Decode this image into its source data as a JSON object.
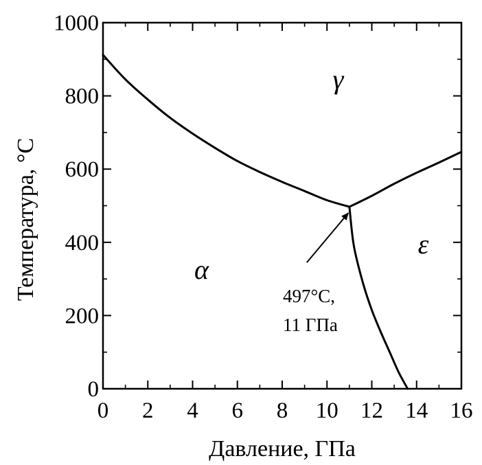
{
  "chart_data": {
    "type": "line",
    "title": "",
    "xlabel": "Давление, ГПа",
    "ylabel": "Температура, °C",
    "xlim": [
      0,
      16
    ],
    "ylim": [
      0,
      1000
    ],
    "xticks": [
      0,
      2,
      4,
      6,
      8,
      10,
      12,
      14,
      16
    ],
    "yticks": [
      0,
      200,
      400,
      600,
      800,
      1000
    ],
    "x_tick_labels": [
      "0",
      "2",
      "4",
      "6",
      "8",
      "10",
      "12",
      "14",
      "16"
    ],
    "y_tick_labels": [
      "0",
      "200",
      "400",
      "600",
      "800",
      "1000"
    ],
    "grid": false,
    "series": [
      {
        "x": [
          0,
          1,
          2,
          3,
          4,
          5,
          6,
          7,
          8,
          9,
          10,
          11
        ],
        "y": [
          912,
          845,
          790,
          740,
          697,
          658,
          622,
          592,
          565,
          540,
          515,
          497
        ]
      },
      {
        "x": [
          11,
          11.2,
          11.6,
          12,
          12.4,
          12.8,
          13.2,
          13.6
        ],
        "y": [
          497,
          390,
          290,
          215,
          155,
          100,
          45,
          0
        ]
      },
      {
        "x": [
          11,
          12,
          13,
          14,
          15,
          16
        ],
        "y": [
          497,
          527,
          560,
          590,
          618,
          647
        ]
      }
    ],
    "phase_labels": [
      {
        "text": "γ",
        "x": 10.5,
        "y": 820
      },
      {
        "text": "α",
        "x": 4.4,
        "y": 300
      },
      {
        "text": "ε",
        "x": 14.3,
        "y": 370
      }
    ],
    "annotation": {
      "lines": [
        "497°C,",
        "11 ГПа"
      ],
      "arrow_from": {
        "x": 9.1,
        "y": 345
      },
      "arrow_to": {
        "x": 10.95,
        "y": 480
      }
    }
  }
}
